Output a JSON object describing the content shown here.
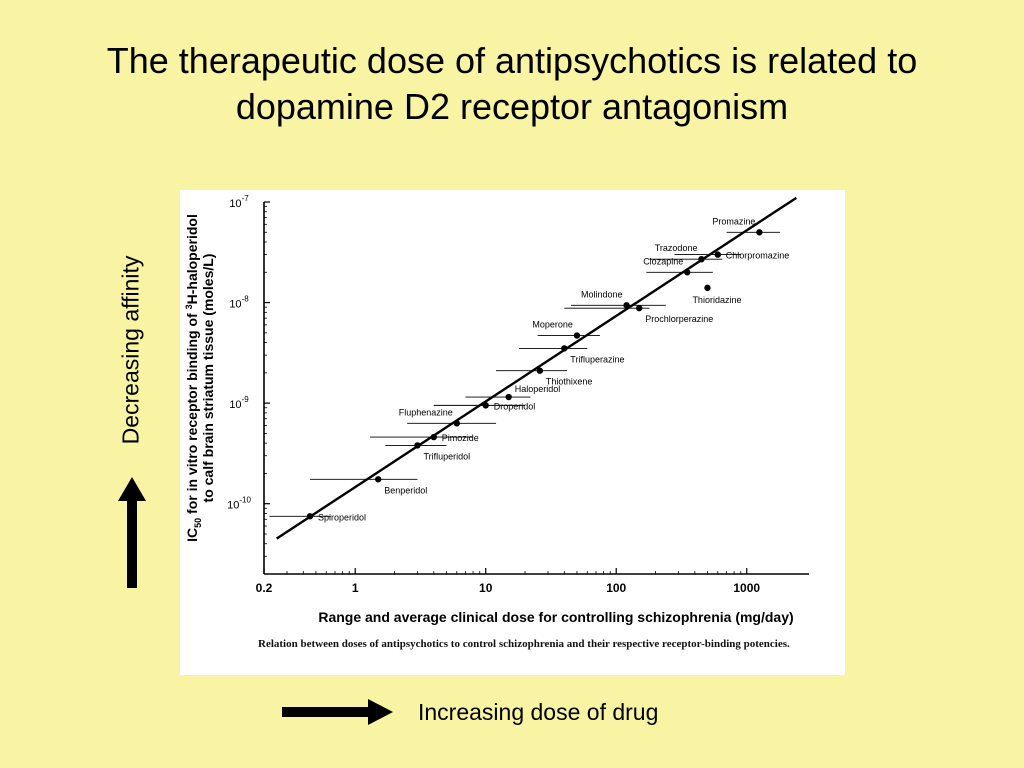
{
  "slide": {
    "title_line1": "The therapeutic dose of antipsychotics is related to",
    "title_line2": "dopamine D2 receptor antagonism",
    "side_label": "Decreasing affinity",
    "bottom_label": "Increasing dose of drug",
    "caption": "Relation between doses of antipsychotics to control schizophrenia and their respective receptor-binding potencies.",
    "colors": {
      "background": "#F8F4A4",
      "figure": "#FFFFFF",
      "ink": "#000000"
    }
  },
  "chart_data": {
    "type": "scatter",
    "x_scale": "log",
    "y_scale": "log",
    "xlabel": "Range and average clinical dose for controlling schizophrenia (mg/day)",
    "ylabel": "IC50 for in vitro receptor binding of 3H-haloperidol to calf brain striatum tissue (moles/L)",
    "ylabel_line1": "to calf brain striatum tissue (moles/L)",
    "ylabel_prefix": "IC",
    "ylabel_sub": "50",
    "ylabel_mid": " for in vitro receptor binding of ",
    "ylabel_sup": "3",
    "ylabel_tail": "H-haloperidol",
    "xlim": [
      0.2,
      3000
    ],
    "ylim": [
      2e-11,
      1e-07
    ],
    "x_ticks": [
      {
        "value": 0.2,
        "label": "0.2"
      },
      {
        "value": 1,
        "label": "1"
      },
      {
        "value": 10,
        "label": "10"
      },
      {
        "value": 100,
        "label": "100"
      },
      {
        "value": 1000,
        "label": "1000"
      }
    ],
    "y_ticks": [
      {
        "value": 1e-10,
        "base": "10",
        "exp": "-10"
      },
      {
        "value": 1e-09,
        "base": "10",
        "exp": "-9"
      },
      {
        "value": 1e-08,
        "base": "10",
        "exp": "-8"
      },
      {
        "value": 1e-07,
        "base": "10",
        "exp": "-7"
      }
    ],
    "regression_line": {
      "x": [
        0.25,
        2400
      ],
      "y": [
        4.5e-11,
        1.1e-07
      ]
    },
    "points": [
      {
        "name": "Spiroperidol",
        "x": 0.45,
        "y": 7.5e-11,
        "xrange": [
          0.22,
          0.65
        ],
        "label_side": "right"
      },
      {
        "name": "Benperidol",
        "x": 1.5,
        "y": 1.75e-10,
        "xrange": [
          0.45,
          3.0
        ],
        "label_side": "right-below"
      },
      {
        "name": "Trifluperidol",
        "x": 3.0,
        "y": 3.8e-10,
        "xrange": [
          1.7,
          5.0
        ],
        "label_side": "right-below"
      },
      {
        "name": "Pimozide",
        "x": 4.0,
        "y": 4.6e-10,
        "xrange": [
          1.3,
          8.0
        ],
        "label_side": "right"
      },
      {
        "name": "Fluphenazine",
        "x": 6.0,
        "y": 6.3e-10,
        "xrange": [
          2.5,
          12.0
        ],
        "label_side": "left-above"
      },
      {
        "name": "Droperidol",
        "x": 10.0,
        "y": 9.5e-10,
        "xrange": [
          4.0,
          20.0
        ],
        "label_side": "right"
      },
      {
        "name": "Haloperidol",
        "x": 15.0,
        "y": 1.15e-09,
        "xrange": [
          7.0,
          22.0
        ],
        "label_side": "right-above"
      },
      {
        "name": "Thiothixene",
        "x": 26.0,
        "y": 2.1e-09,
        "xrange": [
          12.0,
          42.0
        ],
        "label_side": "right-below"
      },
      {
        "name": "Trifluperazine",
        "x": 40.0,
        "y": 3.5e-09,
        "xrange": [
          18.0,
          60.0
        ],
        "label_side": "right-below"
      },
      {
        "name": "Moperone",
        "x": 50.0,
        "y": 4.7e-09,
        "xrange": [
          25.0,
          75.0
        ],
        "label_side": "left-above"
      },
      {
        "name": "Prochlorperazine",
        "x": 150.0,
        "y": 8.8e-09,
        "xrange": [
          40.0,
          180.0
        ],
        "label_side": "right-below"
      },
      {
        "name": "Molindone",
        "x": 120.0,
        "y": 9.4e-09,
        "xrange": [
          45.0,
          240.0
        ],
        "label_side": "left-above"
      },
      {
        "name": "Clozapine",
        "x": 350.0,
        "y": 2e-08,
        "xrange": [
          170.0,
          550.0
        ],
        "label_side": "left-above"
      },
      {
        "name": "Thioridazine",
        "x": 500.0,
        "y": 1.4e-08,
        "xrange": [],
        "label_side": "below"
      },
      {
        "name": "Trazodone",
        "x": 450.0,
        "y": 2.7e-08,
        "xrange": [
          180.0,
          650.0
        ],
        "label_side": "left-above"
      },
      {
        "name": "Chlorpromazine",
        "x": 600.0,
        "y": 3e-08,
        "xrange": [
          280.0,
          900.0
        ],
        "label_side": "right"
      },
      {
        "name": "Promazine",
        "x": 1250.0,
        "y": 5e-08,
        "xrange": [
          700.0,
          1800.0
        ],
        "label_side": "left-above"
      }
    ]
  }
}
